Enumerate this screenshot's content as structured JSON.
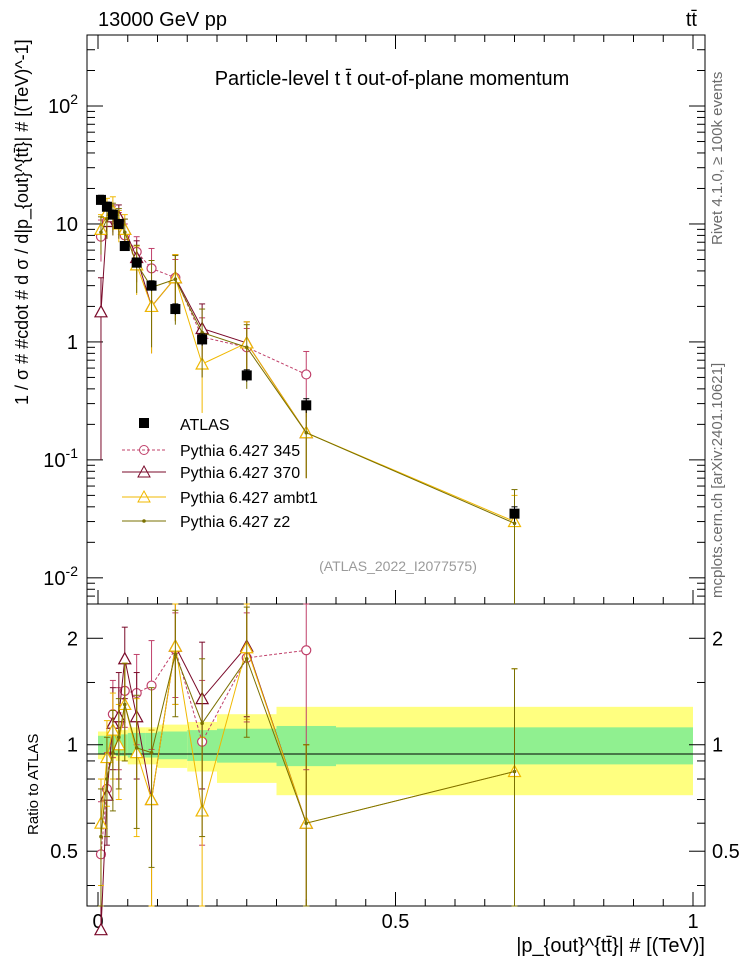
{
  "header": {
    "energy": "13000 GeV pp",
    "process": "tt̄",
    "title": "Particle-level t t̄ out-of-plane momentum",
    "analysis": "(ATLAS_2022_I2077575)",
    "side_rivet": "Rivet 4.1.0, ≥ 100k events",
    "side_url": "mcplots.cern.ch [arXiv:2401.10621]"
  },
  "axes": {
    "ylabel_top": "1 / σ # #cdot # d σ / d|p_{out}^{tt̄}| # [(TeV)^-1]",
    "ylabel_bottom": "Ratio to ATLAS",
    "xlabel": "|p_{out}^{tt̄}| # [(TeV)]",
    "x_ticks": [
      "0",
      "0.5",
      "1"
    ],
    "y_ticks_top": [
      "10^-2",
      "10^-1",
      "1",
      "10",
      "10^2"
    ],
    "y_ticks_bottom": [
      "0.5",
      "1",
      "2"
    ]
  },
  "colors": {
    "atlas": "#000000",
    "py345": "#c0406a",
    "py370": "#7a0a2a",
    "ambt1": "#f0b800",
    "z2": "#7a7000",
    "band_inner": "#90f090",
    "band_outer": "#ffff80"
  },
  "chart_data": {
    "type": "line",
    "title": "Particle-level t t̄ out-of-plane momentum",
    "xlim": [
      0,
      1.02
    ],
    "ylim_top": [
      0.006,
      400
    ],
    "ylim_bottom": [
      0.35,
      2.5
    ],
    "x": [
      0.005,
      0.015,
      0.025,
      0.035,
      0.045,
      0.065,
      0.09,
      0.13,
      0.175,
      0.25,
      0.35,
      0.7
    ],
    "series": [
      {
        "name": "ATLAS",
        "values": [
          16,
          14,
          12,
          10,
          6.5,
          4.7,
          3.0,
          1.9,
          1.05,
          0.52,
          0.29,
          0.035
        ],
        "errors": [
          1.5,
          1.3,
          1.1,
          0.9,
          0.6,
          0.45,
          0.3,
          0.2,
          0.12,
          0.06,
          0.04,
          0.005
        ]
      },
      {
        "name": "Pythia 6.427 345",
        "values": [
          7.8,
          10.5,
          11.0,
          10.0,
          8.0,
          5.8,
          4.2,
          3.5,
          1.1,
          0.9,
          0.53,
          null
        ],
        "errors": [
          3.0,
          3.0,
          3.0,
          2.5,
          2.0,
          2.0,
          2.0,
          1.5,
          0.5,
          0.4,
          0.3,
          null
        ]
      },
      {
        "name": "Pythia 6.427 370",
        "values": [
          1.8,
          10.5,
          11.5,
          11.5,
          9.0,
          5.2,
          2.0,
          3.5,
          1.3,
          0.98,
          0.17,
          null
        ],
        "errors": [
          1.7,
          3.0,
          3.0,
          3.0,
          2.0,
          2.0,
          1.2,
          2.0,
          0.8,
          0.5,
          0.1,
          null
        ]
      },
      {
        "name": "Pythia 6.427 ambt1",
        "values": [
          9.0,
          12.5,
          13.0,
          10.0,
          9.0,
          4.5,
          2.0,
          3.5,
          0.65,
          0.98,
          0.17,
          0.03
        ],
        "errors": [
          3.0,
          4.0,
          4.0,
          3.0,
          3.0,
          2.0,
          1.2,
          2.0,
          0.4,
          0.5,
          0.1,
          0.02
        ]
      },
      {
        "name": "Pythia 6.427 z2",
        "values": [
          8.5,
          11.0,
          11.5,
          10.5,
          8.5,
          4.6,
          2.9,
          3.4,
          1.2,
          0.9,
          0.17,
          0.029
        ],
        "errors": [
          3.0,
          3.5,
          3.5,
          3.0,
          2.5,
          2.0,
          2.0,
          2.0,
          0.7,
          0.5,
          0.1,
          0.027
        ]
      }
    ],
    "ratio": [
      {
        "name": "Pythia 6.427 345",
        "values": [
          0.49,
          0.75,
          1.22,
          1.15,
          1.42,
          1.4,
          1.47,
          1.86,
          1.02,
          1.76,
          1.85,
          null
        ],
        "errors": [
          0.2,
          0.2,
          0.3,
          0.3,
          0.3,
          0.4,
          0.5,
          0.5,
          0.5,
          0.6,
          1.0,
          null
        ]
      },
      {
        "name": "Pythia 6.427 370",
        "values": [
          0.12,
          0.72,
          1.15,
          1.2,
          1.75,
          1.2,
          0.7,
          1.9,
          1.35,
          1.9,
          0.6,
          null
        ],
        "errors": [
          0.1,
          0.2,
          0.3,
          0.4,
          0.4,
          0.4,
          0.4,
          0.6,
          0.6,
          0.7,
          0.4,
          null
        ]
      },
      {
        "name": "Pythia 6.427 ambt1",
        "values": [
          0.6,
          0.92,
          1.1,
          1.0,
          1.3,
          0.95,
          0.7,
          1.9,
          0.65,
          1.88,
          0.6,
          0.84
        ],
        "errors": [
          0.2,
          0.25,
          0.3,
          0.3,
          0.4,
          0.4,
          0.4,
          0.6,
          0.4,
          0.7,
          0.4,
          0.8
        ]
      },
      {
        "name": "Pythia 6.427 z2",
        "values": [
          0.55,
          0.8,
          0.95,
          1.05,
          1.3,
          0.98,
          0.95,
          1.8,
          1.15,
          1.75,
          0.6,
          0.84
        ],
        "errors": [
          0.2,
          0.25,
          0.3,
          0.3,
          0.4,
          0.4,
          0.5,
          0.6,
          0.6,
          0.7,
          0.4,
          0.8
        ]
      }
    ],
    "band": {
      "edges": [
        0,
        0.01,
        0.02,
        0.03,
        0.04,
        0.05,
        0.08,
        0.1,
        0.15,
        0.2,
        0.3,
        0.4,
        1.0
      ],
      "inner": [
        0.06,
        0.06,
        0.06,
        0.07,
        0.07,
        0.08,
        0.08,
        0.09,
        0.1,
        0.11,
        0.13,
        0.12
      ],
      "outer": [
        0.09,
        0.09,
        0.09,
        0.1,
        0.1,
        0.12,
        0.12,
        0.14,
        0.16,
        0.22,
        0.28,
        0.28
      ]
    }
  }
}
